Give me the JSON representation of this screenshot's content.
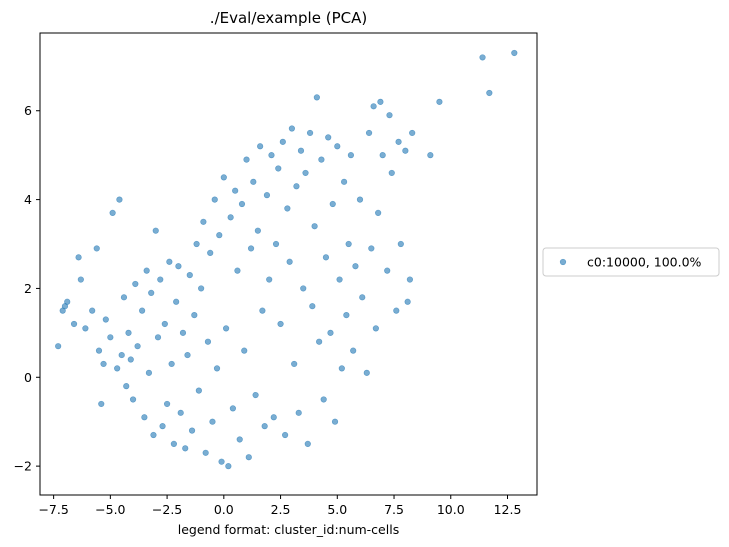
{
  "chart_data": {
    "type": "scatter",
    "title": "./Eval/example (PCA)",
    "xlabel": "legend format:  cluster_id:num-cells",
    "ylabel": "",
    "xlim": [
      -8.1,
      13.8
    ],
    "ylim": [
      -2.65,
      7.75
    ],
    "xticks": [
      -7.5,
      -5.0,
      -2.5,
      0.0,
      2.5,
      5.0,
      7.5,
      10.0,
      12.5
    ],
    "xtick_labels": [
      "−7.5",
      "−5.0",
      "−2.5",
      "0.0",
      "2.5",
      "5.0",
      "7.5",
      "10.0",
      "12.5"
    ],
    "yticks": [
      -2,
      0,
      2,
      4,
      6
    ],
    "ytick_labels": [
      "−2",
      "0",
      "2",
      "4",
      "6"
    ],
    "grid": false,
    "legend_position": "outside-right",
    "color": "#1f77b4",
    "alpha": 0.6,
    "series": [
      {
        "name": "c0:10000, 100.0%",
        "points": [
          [
            -7.3,
            0.7
          ],
          [
            -7.1,
            1.5
          ],
          [
            -7.0,
            1.6
          ],
          [
            -6.9,
            1.7
          ],
          [
            -6.6,
            1.2
          ],
          [
            -6.4,
            2.7
          ],
          [
            -6.3,
            2.2
          ],
          [
            -6.1,
            1.1
          ],
          [
            -5.8,
            1.5
          ],
          [
            -5.6,
            2.9
          ],
          [
            -5.5,
            0.6
          ],
          [
            -5.4,
            -0.6
          ],
          [
            -5.3,
            0.3
          ],
          [
            -5.2,
            1.3
          ],
          [
            -5.0,
            0.9
          ],
          [
            -4.9,
            3.7
          ],
          [
            -4.7,
            0.2
          ],
          [
            -4.6,
            4.0
          ],
          [
            -4.5,
            0.5
          ],
          [
            -4.4,
            1.8
          ],
          [
            -4.3,
            -0.2
          ],
          [
            -4.2,
            1.0
          ],
          [
            -4.1,
            0.4
          ],
          [
            -4.0,
            -0.5
          ],
          [
            -3.9,
            2.1
          ],
          [
            -3.8,
            0.7
          ],
          [
            -3.6,
            1.5
          ],
          [
            -3.5,
            -0.9
          ],
          [
            -3.4,
            2.4
          ],
          [
            -3.3,
            0.1
          ],
          [
            -3.2,
            1.9
          ],
          [
            -3.1,
            -1.3
          ],
          [
            -3.0,
            3.3
          ],
          [
            -2.9,
            0.9
          ],
          [
            -2.8,
            2.2
          ],
          [
            -2.7,
            -1.1
          ],
          [
            -2.6,
            1.2
          ],
          [
            -2.5,
            -0.6
          ],
          [
            -2.4,
            2.6
          ],
          [
            -2.3,
            0.3
          ],
          [
            -2.2,
            -1.5
          ],
          [
            -2.1,
            1.7
          ],
          [
            -2.0,
            2.5
          ],
          [
            -1.9,
            -0.8
          ],
          [
            -1.8,
            1.0
          ],
          [
            -1.7,
            -1.6
          ],
          [
            -1.6,
            0.5
          ],
          [
            -1.5,
            2.3
          ],
          [
            -1.4,
            -1.2
          ],
          [
            -1.3,
            1.4
          ],
          [
            -1.2,
            3.0
          ],
          [
            -1.1,
            -0.3
          ],
          [
            -1.0,
            2.0
          ],
          [
            -0.9,
            3.5
          ],
          [
            -0.8,
            -1.7
          ],
          [
            -0.7,
            0.8
          ],
          [
            -0.6,
            2.8
          ],
          [
            -0.5,
            -1.0
          ],
          [
            -0.4,
            4.0
          ],
          [
            -0.3,
            0.2
          ],
          [
            -0.2,
            3.2
          ],
          [
            -0.1,
            -1.9
          ],
          [
            0.0,
            4.5
          ],
          [
            0.1,
            1.1
          ],
          [
            0.2,
            -2.0
          ],
          [
            0.3,
            3.6
          ],
          [
            0.4,
            -0.7
          ],
          [
            0.5,
            4.2
          ],
          [
            0.6,
            2.4
          ],
          [
            0.7,
            -1.4
          ],
          [
            0.8,
            3.9
          ],
          [
            0.9,
            0.6
          ],
          [
            1.0,
            4.9
          ],
          [
            1.1,
            -1.8
          ],
          [
            1.2,
            2.9
          ],
          [
            1.3,
            4.4
          ],
          [
            1.4,
            -0.4
          ],
          [
            1.5,
            3.3
          ],
          [
            1.6,
            5.2
          ],
          [
            1.7,
            1.5
          ],
          [
            1.8,
            -1.1
          ],
          [
            1.9,
            4.1
          ],
          [
            2.0,
            2.2
          ],
          [
            2.1,
            5.0
          ],
          [
            2.2,
            -0.9
          ],
          [
            2.3,
            3.0
          ],
          [
            2.4,
            4.7
          ],
          [
            2.5,
            1.2
          ],
          [
            2.6,
            5.3
          ],
          [
            2.7,
            -1.3
          ],
          [
            2.8,
            3.8
          ],
          [
            2.9,
            2.6
          ],
          [
            3.0,
            5.6
          ],
          [
            3.1,
            0.3
          ],
          [
            3.2,
            4.3
          ],
          [
            3.3,
            -0.8
          ],
          [
            3.4,
            5.1
          ],
          [
            3.5,
            2.0
          ],
          [
            3.6,
            4.6
          ],
          [
            3.7,
            -1.5
          ],
          [
            3.8,
            5.5
          ],
          [
            3.9,
            1.6
          ],
          [
            4.0,
            3.4
          ],
          [
            4.1,
            6.3
          ],
          [
            4.2,
            0.8
          ],
          [
            4.3,
            4.9
          ],
          [
            4.4,
            -0.5
          ],
          [
            4.5,
            2.7
          ],
          [
            4.6,
            5.4
          ],
          [
            4.7,
            1.0
          ],
          [
            4.8,
            3.9
          ],
          [
            4.9,
            -1.0
          ],
          [
            5.0,
            5.2
          ],
          [
            5.1,
            2.2
          ],
          [
            5.2,
            0.2
          ],
          [
            5.3,
            4.4
          ],
          [
            5.4,
            1.4
          ],
          [
            5.5,
            3.0
          ],
          [
            5.6,
            5.0
          ],
          [
            5.7,
            0.6
          ],
          [
            5.8,
            2.5
          ],
          [
            6.0,
            4.0
          ],
          [
            6.1,
            1.8
          ],
          [
            6.3,
            0.1
          ],
          [
            6.4,
            5.5
          ],
          [
            6.5,
            2.9
          ],
          [
            6.6,
            6.1
          ],
          [
            6.7,
            1.1
          ],
          [
            6.8,
            3.7
          ],
          [
            6.9,
            6.2
          ],
          [
            7.0,
            5.0
          ],
          [
            7.2,
            2.4
          ],
          [
            7.3,
            5.9
          ],
          [
            7.4,
            4.6
          ],
          [
            7.6,
            1.5
          ],
          [
            7.7,
            5.3
          ],
          [
            7.8,
            3.0
          ],
          [
            8.0,
            5.1
          ],
          [
            8.1,
            1.7
          ],
          [
            8.2,
            2.2
          ],
          [
            8.3,
            5.5
          ],
          [
            9.1,
            5.0
          ],
          [
            9.5,
            6.2
          ],
          [
            11.4,
            7.2
          ],
          [
            11.7,
            6.4
          ],
          [
            12.8,
            7.3
          ]
        ]
      }
    ]
  }
}
